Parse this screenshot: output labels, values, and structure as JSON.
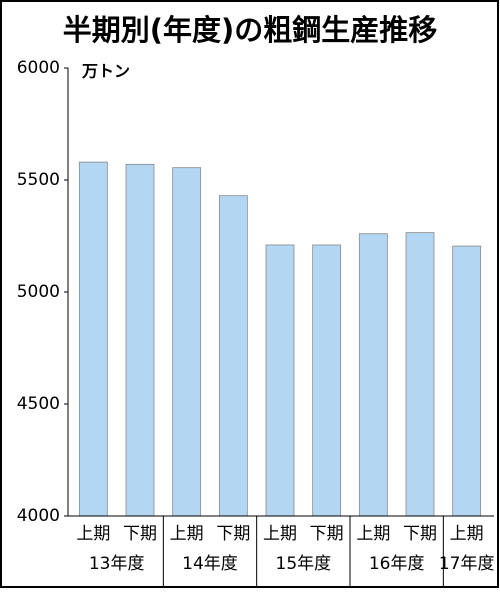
{
  "chart_data": {
    "type": "bar",
    "title": "半期別(年度)の粗鋼生産推移",
    "unit": "万トン",
    "categories": [
      "上期",
      "下期",
      "上期",
      "下期",
      "上期",
      "下期",
      "上期",
      "下期",
      "上期"
    ],
    "groups": [
      "13年度",
      "14年度",
      "15年度",
      "16年度",
      "17年度"
    ],
    "values": [
      5580,
      5570,
      5555,
      5430,
      5210,
      5210,
      5260,
      5265,
      5205
    ],
    "color": "#b3d7f2",
    "ylim": [
      4000,
      6000
    ],
    "yticks": [
      4000,
      4500,
      5000,
      5500,
      6000
    ]
  }
}
